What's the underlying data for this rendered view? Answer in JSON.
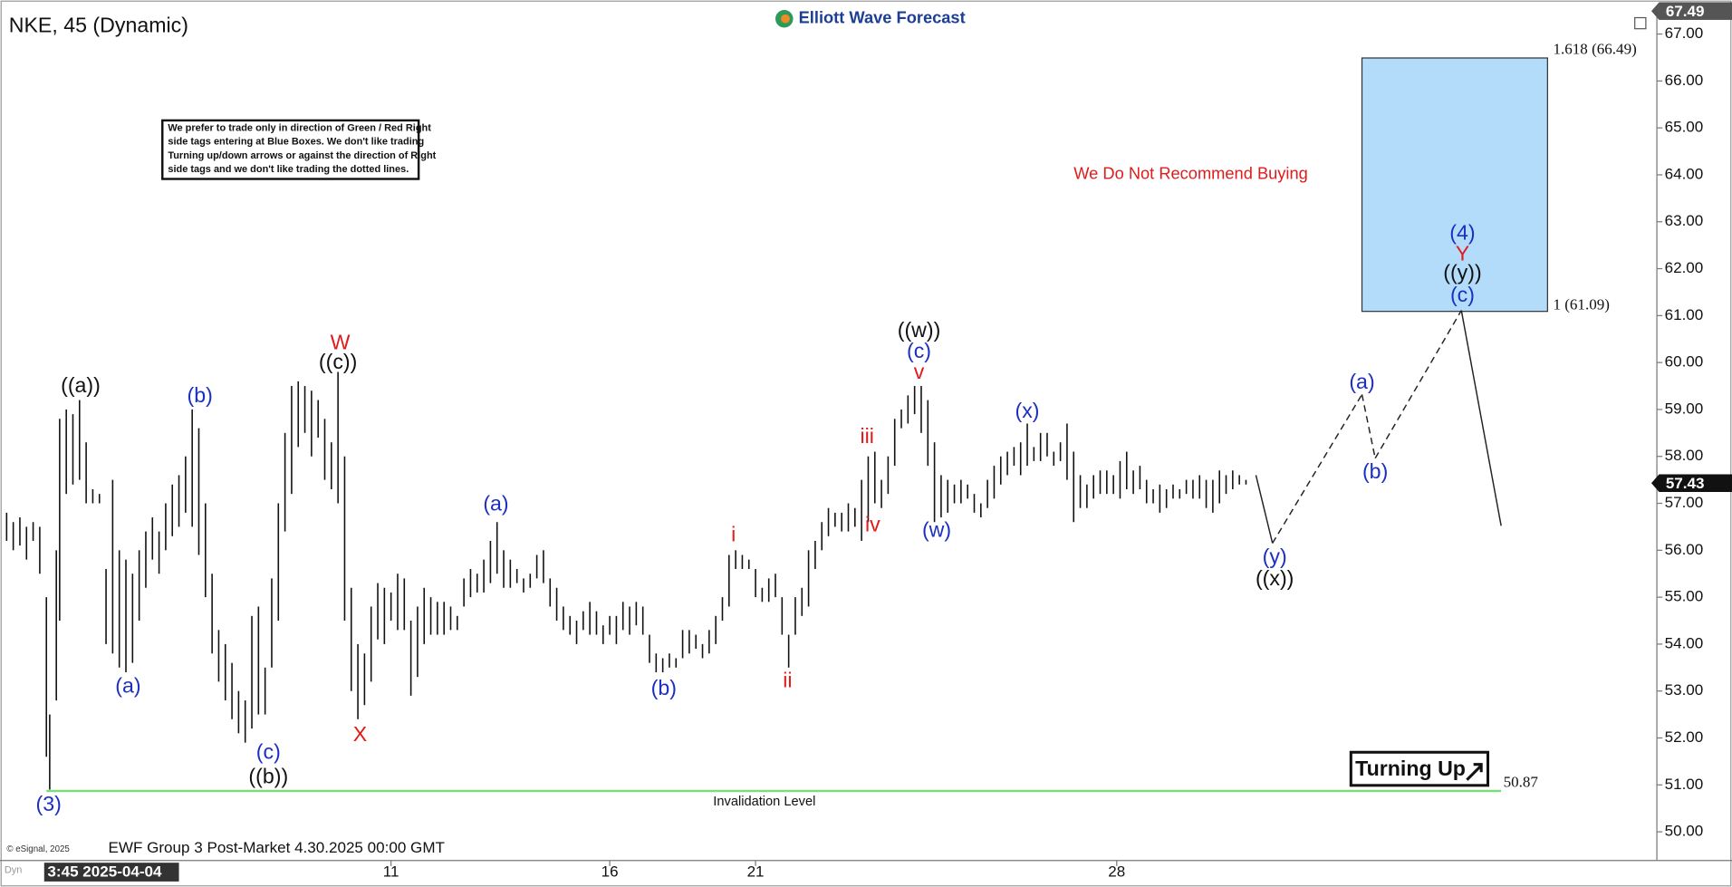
{
  "chart_data": {
    "type": "ohlc",
    "title": "NKE, 45 (Dynamic)",
    "brand": "Elliott Wave Forecast",
    "note": [
      "We prefer to trade only in direction of Green / Red Right",
      "side tags entering at Blue Boxes. We don't like trading",
      "Turning up/down arrows or against the direction of Right",
      "side tags and we don't like trading the dotted lines."
    ],
    "warning": "We Do Not Recommend Buying",
    "signal": "Turning Up",
    "footer": "EWF Group 3 Post-Market 4.30.2025 00:00 GMT",
    "copyright": "© eSignal, 2025",
    "corner": "Dyn",
    "start_label": "3:45 2025-04-04",
    "color": "#111111",
    "xlim": [
      0,
      500
    ],
    "ylim": [
      49.13,
      67.49
    ],
    "xticks": [
      {
        "value": 118,
        "label": "11"
      },
      {
        "value": 184,
        "label": "16"
      },
      {
        "value": 228,
        "label": "21"
      },
      {
        "value": 337,
        "label": "28"
      }
    ],
    "yticks": [
      {
        "value": 50,
        "label": "50.00"
      },
      {
        "value": 51,
        "label": "51.00"
      },
      {
        "value": 52,
        "label": "52.00"
      },
      {
        "value": 53,
        "label": "53.00"
      },
      {
        "value": 54,
        "label": "54.00"
      },
      {
        "value": 55,
        "label": "55.00"
      },
      {
        "value": 56,
        "label": "56.00"
      },
      {
        "value": 57,
        "label": "57.00"
      },
      {
        "value": 58,
        "label": "58.00"
      },
      {
        "value": 59,
        "label": "59.00"
      },
      {
        "value": 60,
        "label": "60.00"
      },
      {
        "value": 61,
        "label": "61.00"
      },
      {
        "value": 62,
        "label": "62.00"
      },
      {
        "value": 63,
        "label": "63.00"
      },
      {
        "value": 64,
        "label": "64.00"
      },
      {
        "value": 65,
        "label": "65.00"
      },
      {
        "value": 66,
        "label": "66.00"
      },
      {
        "value": 67,
        "label": "67.00"
      }
    ],
    "x": [
      2,
      4,
      6,
      8,
      10,
      12,
      14,
      15,
      17,
      18,
      20,
      22,
      24,
      26,
      28,
      30,
      32,
      34,
      36,
      38,
      40,
      42,
      44,
      46,
      48,
      50,
      52,
      54,
      56,
      58,
      60,
      62,
      64,
      66,
      68,
      70,
      72,
      74,
      76,
      78,
      80,
      82,
      84,
      86,
      88,
      90,
      92,
      94,
      96,
      98,
      100,
      102,
      104,
      106,
      108,
      110,
      112,
      114,
      116,
      118,
      120,
      122,
      124,
      126,
      128,
      130,
      132,
      134,
      136,
      138,
      140,
      142,
      144,
      146,
      148,
      150,
      152,
      154,
      156,
      158,
      160,
      162,
      164,
      166,
      168,
      170,
      172,
      174,
      176,
      178,
      180,
      182,
      184,
      186,
      188,
      190,
      192,
      194,
      196,
      198,
      200,
      202,
      204,
      206,
      208,
      210,
      212,
      214,
      216,
      218,
      220,
      222,
      224,
      226,
      228,
      230,
      232,
      234,
      236,
      238,
      240,
      242,
      244,
      246,
      248,
      250,
      252,
      254,
      256,
      258,
      260,
      262,
      264,
      266,
      268,
      270,
      272,
      274,
      276,
      278,
      280,
      282,
      284,
      286,
      288,
      290,
      292,
      294,
      296,
      298,
      300,
      302,
      304,
      306,
      308,
      310,
      312,
      314,
      316,
      318,
      320,
      322,
      324,
      326,
      328,
      330,
      332,
      334,
      336,
      338,
      340,
      342,
      344,
      346,
      348,
      350,
      352,
      354,
      356,
      358,
      360,
      362,
      364,
      366,
      368,
      370,
      372,
      374,
      376
    ],
    "high": [
      56.8,
      56.6,
      56.7,
      56.5,
      56.6,
      56.5,
      55.0,
      52.5,
      56.0,
      58.8,
      59.0,
      58.9,
      59.2,
      58.3,
      57.3,
      57.2,
      55.6,
      57.5,
      56.0,
      55.8,
      55.5,
      56.0,
      56.4,
      56.7,
      56.4,
      57.0,
      57.4,
      57.6,
      58.0,
      59.0,
      58.6,
      57.0,
      55.5,
      54.3,
      54.0,
      53.6,
      53.0,
      52.8,
      54.6,
      54.8,
      53.5,
      55.4,
      57.0,
      58.5,
      59.5,
      59.6,
      59.5,
      59.4,
      59.2,
      58.8,
      58.3,
      59.8,
      58.0,
      55.2,
      54.0,
      53.8,
      54.8,
      55.3,
      55.2,
      55.1,
      55.5,
      55.4,
      54.5,
      54.8,
      55.2,
      55.0,
      54.9,
      54.9,
      54.8,
      54.6,
      55.4,
      55.6,
      55.5,
      55.8,
      56.2,
      56.6,
      56.0,
      55.8,
      55.6,
      55.4,
      55.5,
      55.9,
      56.0,
      55.4,
      55.2,
      54.8,
      54.6,
      54.5,
      54.7,
      54.9,
      54.7,
      54.4,
      54.6,
      54.6,
      54.9,
      54.8,
      54.9,
      54.8,
      54.2,
      53.8,
      53.7,
      53.8,
      53.7,
      54.3,
      54.3,
      54.2,
      54.0,
      54.3,
      54.6,
      55.0,
      55.9,
      56.0,
      55.9,
      55.8,
      55.6,
      55.2,
      55.4,
      55.5,
      55.0,
      54.2,
      55.0,
      55.2,
      56.0,
      56.2,
      56.6,
      56.9,
      56.8,
      56.8,
      57.0,
      56.9,
      57.5,
      58.0,
      58.1,
      57.5,
      58.0,
      58.8,
      59.0,
      59.3,
      59.5,
      59.5,
      59.2,
      58.3,
      57.6,
      57.5,
      57.4,
      57.5,
      57.4,
      57.2,
      57.0,
      57.5,
      57.8,
      58.0,
      58.1,
      58.2,
      58.3,
      58.7,
      58.2,
      58.5,
      58.5,
      58.1,
      58.3,
      58.7,
      58.1,
      57.6,
      57.4,
      57.6,
      57.7,
      57.7,
      57.6,
      57.9,
      58.1,
      57.7,
      57.8,
      57.5,
      57.3,
      57.4,
      57.3,
      57.4,
      57.3,
      57.5,
      57.5,
      57.6,
      57.5,
      57.5,
      57.7,
      57.6,
      57.7,
      57.6,
      57.5
    ],
    "low": [
      56.2,
      56.0,
      56.1,
      55.8,
      56.2,
      55.5,
      51.6,
      50.9,
      52.8,
      54.5,
      57.2,
      57.4,
      57.5,
      57.0,
      57.0,
      57.0,
      54.0,
      53.8,
      53.5,
      53.4,
      53.6,
      54.5,
      55.2,
      55.8,
      55.5,
      56.0,
      56.3,
      56.5,
      56.8,
      56.5,
      55.9,
      55.0,
      53.8,
      53.2,
      52.8,
      52.4,
      52.1,
      51.9,
      52.2,
      52.5,
      52.5,
      53.5,
      54.5,
      56.4,
      57.2,
      58.2,
      58.5,
      58.0,
      58.4,
      57.5,
      57.3,
      57.0,
      54.5,
      53.0,
      52.4,
      52.7,
      53.2,
      54.1,
      54.0,
      54.5,
      54.3,
      54.3,
      52.9,
      53.3,
      54.0,
      54.2,
      54.2,
      54.2,
      54.3,
      54.3,
      54.8,
      55.0,
      55.1,
      55.1,
      55.3,
      55.5,
      55.2,
      55.2,
      55.3,
      55.1,
      55.2,
      55.4,
      55.3,
      54.8,
      54.5,
      54.3,
      54.2,
      54.0,
      54.3,
      54.2,
      54.2,
      54.0,
      54.2,
      54.0,
      54.3,
      54.2,
      54.4,
      54.2,
      53.6,
      53.4,
      53.4,
      53.5,
      53.5,
      53.7,
      53.8,
      53.9,
      53.7,
      53.8,
      54.0,
      54.5,
      54.8,
      55.6,
      55.6,
      55.6,
      55.0,
      54.9,
      54.9,
      55.0,
      54.2,
      53.5,
      54.2,
      54.6,
      54.8,
      55.6,
      56.0,
      56.3,
      56.5,
      56.4,
      56.4,
      56.5,
      56.2,
      56.6,
      57.0,
      56.9,
      57.2,
      57.8,
      58.6,
      58.7,
      58.9,
      58.5,
      57.8,
      56.6,
      56.7,
      56.8,
      57.0,
      57.0,
      57.1,
      56.8,
      56.7,
      56.9,
      57.1,
      57.4,
      57.6,
      57.8,
      57.6,
      57.8,
      57.9,
      57.9,
      58.0,
      57.8,
      57.9,
      57.5,
      56.6,
      56.9,
      56.9,
      57.1,
      57.2,
      57.2,
      57.2,
      57.1,
      57.3,
      57.2,
      57.3,
      57.0,
      57.0,
      56.8,
      56.9,
      57.1,
      57.1,
      57.2,
      57.1,
      57.1,
      56.9,
      56.8,
      57.0,
      57.2,
      57.3,
      57.4,
      57.4
    ],
    "last_price": 57.43,
    "top_price": 67.49,
    "projection": {
      "x": [
        379,
        384,
        411,
        415,
        441,
        453
      ],
      "values": [
        57.6,
        56.15,
        59.32,
        57.96,
        61.11,
        56.52
      ],
      "dashed": [
        false,
        true,
        true,
        true,
        false
      ]
    },
    "blue_box": {
      "x": [
        411,
        467
      ],
      "values": [
        61.09,
        66.49
      ],
      "labels": [
        "1 (61.09)",
        "1.618 (66.49)"
      ],
      "color": "#b3dcfa"
    },
    "invalidation": {
      "value": 50.87,
      "label": "50.87",
      "text": "Invalidation Level",
      "x": [
        14,
        453
      ],
      "color": "#7ddc7d"
    },
    "waves": [
      {
        "text": "((a))",
        "color": "#111111"
      },
      {
        "text": "(a)",
        "color": "#1c2fc0"
      },
      {
        "text": "(b)",
        "color": "#1c2fc0"
      },
      {
        "text": "(c)",
        "color": "#1c2fc0"
      },
      {
        "text": "((b))",
        "color": "#111111"
      },
      {
        "text": "W",
        "color": "#e01b1b"
      },
      {
        "text": "((c))",
        "color": "#111111"
      },
      {
        "text": "X",
        "color": "#e01b1b"
      },
      {
        "text": "(3)",
        "color": "#1c2fc0"
      },
      {
        "text": "(a)",
        "color": "#1c2fc0"
      },
      {
        "text": "(b)",
        "color": "#1c2fc0"
      },
      {
        "text": "i",
        "color": "#e01b1b"
      },
      {
        "text": "ii",
        "color": "#e01b1b"
      },
      {
        "text": "iii",
        "color": "#e01b1b"
      },
      {
        "text": "iv",
        "color": "#e01b1b"
      },
      {
        "text": "((w))",
        "color": "#111111"
      },
      {
        "text": "(c)",
        "color": "#1c2fc0"
      },
      {
        "text": "v",
        "color": "#e01b1b"
      },
      {
        "text": "(w)",
        "color": "#1c2fc0"
      },
      {
        "text": "(x)",
        "color": "#1c2fc0"
      },
      {
        "text": "(y)",
        "color": "#1c2fc0"
      },
      {
        "text": "((x))",
        "color": "#111111"
      },
      {
        "text": "(a)",
        "color": "#1c2fc0"
      },
      {
        "text": "(b)",
        "color": "#1c2fc0"
      },
      {
        "text": "(4)",
        "color": "#1c2fc0"
      },
      {
        "text": "Y",
        "color": "#e01b1b"
      },
      {
        "text": "((y))",
        "color": "#111111"
      },
      {
        "text": "(c)",
        "color": "#1c2fc0"
      }
    ]
  }
}
